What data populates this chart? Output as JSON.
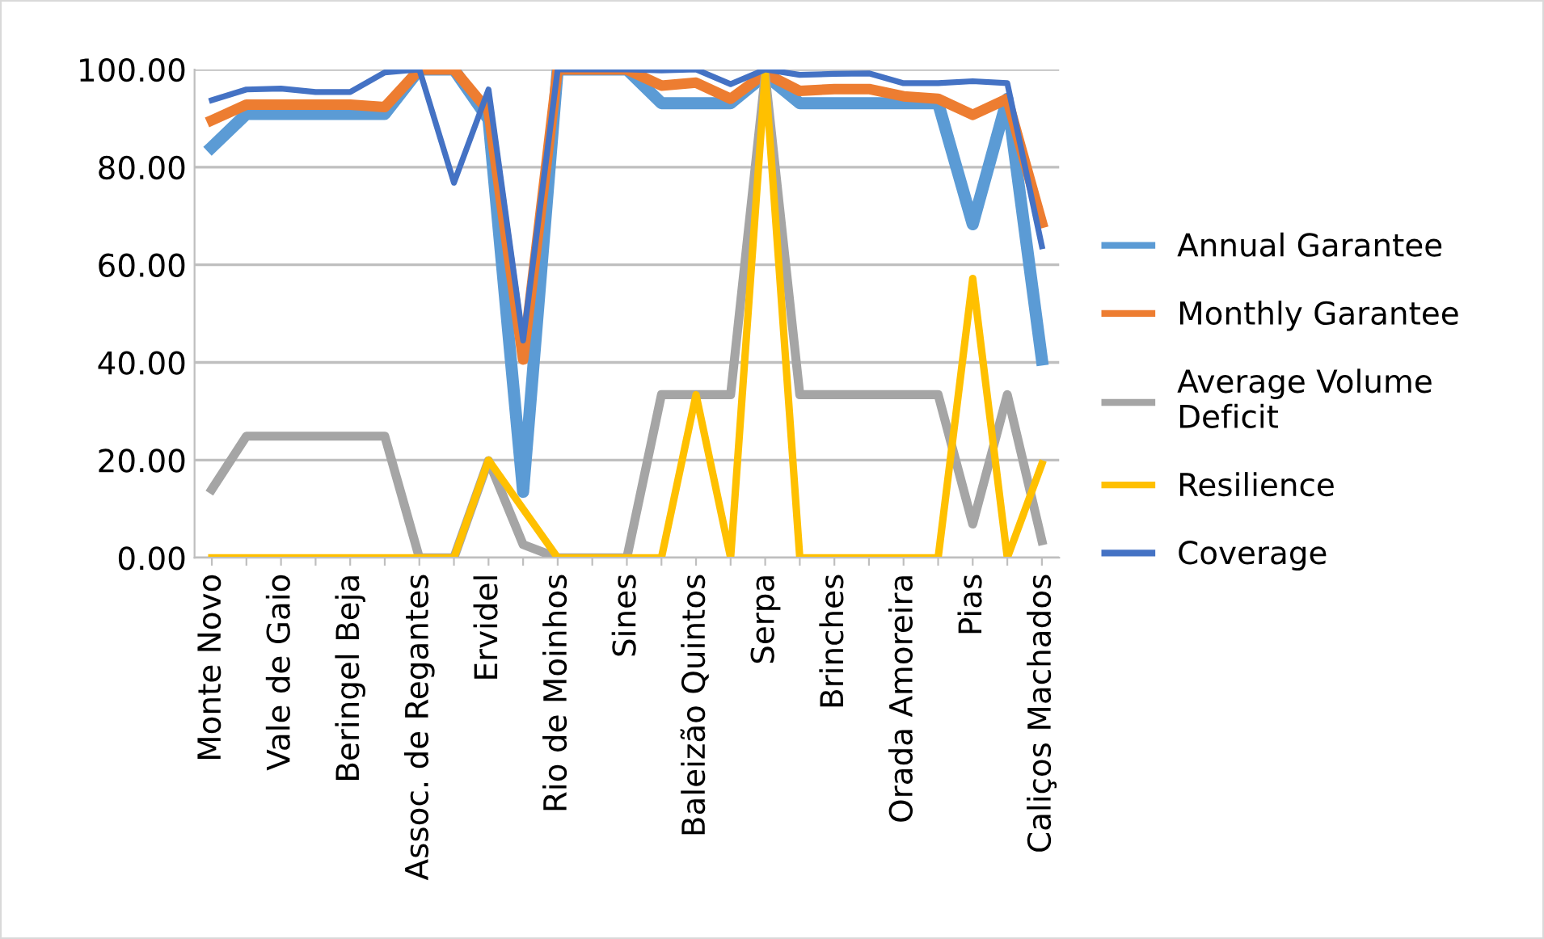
{
  "chart_data": {
    "type": "line",
    "categories": [
      "Monte Novo",
      null,
      "Vale de Gaio",
      null,
      "Beringel Beja",
      null,
      "Assoc. de Regantes",
      null,
      "Ervidel",
      null,
      "Rio de Moinhos",
      null,
      "Sines",
      null,
      "Baleizão Quintos",
      null,
      "Serpa",
      null,
      "Brinches",
      null,
      "Orada Amoreira",
      null,
      "Pias",
      null,
      "Caliços Machados"
    ],
    "series": [
      {
        "name": "Annual Garantee",
        "color": "#5b9bd5",
        "values": [
          84.1,
          90.9,
          90.9,
          90.9,
          90.9,
          90.9,
          100,
          100,
          89.8,
          13.5,
          100,
          100,
          100,
          93.1,
          93.1,
          93.1,
          98.9,
          93.1,
          93.1,
          93.1,
          93.1,
          93.1,
          68.3,
          94.0,
          40.6
        ]
      },
      {
        "name": "Monthly Garantee",
        "color": "#ed7d31",
        "values": [
          89.6,
          92.8,
          92.8,
          92.8,
          92.8,
          92.3,
          100,
          100,
          91.5,
          40.6,
          100,
          100,
          100,
          96.7,
          97.3,
          94.0,
          99.2,
          95.6,
          96.0,
          96.0,
          94.5,
          94.0,
          90.7,
          94.0,
          68.6
        ]
      },
      {
        "name": "Average Volume\nDeficit",
        "color": "#a5a5a5",
        "values": [
          14.0,
          24.9,
          24.9,
          24.9,
          24.9,
          24.9,
          0,
          0,
          19.9,
          2.7,
          0,
          0,
          0,
          33.4,
          33.4,
          33.4,
          98.9,
          33.4,
          33.4,
          33.4,
          33.4,
          33.4,
          6.9,
          33.4,
          3.5
        ]
      },
      {
        "name": "Resilience",
        "color": "#ffc000",
        "values": [
          0,
          0,
          0,
          0,
          0,
          0,
          0,
          0,
          20,
          10,
          0,
          0,
          0,
          0,
          33.4,
          0,
          99.2,
          0,
          0,
          0,
          0,
          0,
          57.2,
          0,
          19.2
        ]
      },
      {
        "name": "Coverage",
        "color": "#4472c4",
        "values": [
          93.7,
          95.9,
          96.1,
          95.4,
          95.4,
          99.4,
          100,
          76.8,
          95.9,
          44.5,
          100,
          100,
          100,
          99.8,
          100,
          97.0,
          100,
          98.9,
          99.1,
          99.2,
          97.2,
          97.2,
          97.6,
          97.2,
          63.8
        ]
      }
    ],
    "ylim": [
      0,
      100
    ],
    "yticks": [
      {
        "value": 0,
        "label": "0.00"
      },
      {
        "value": 20,
        "label": "20.00"
      },
      {
        "value": 40,
        "label": "40.00"
      },
      {
        "value": 60,
        "label": "60.00"
      },
      {
        "value": 80,
        "label": "80.00"
      },
      {
        "value": 100,
        "label": "100.00"
      }
    ],
    "grid": "y",
    "legend": "right",
    "marker": "none",
    "line_style": "solid"
  }
}
